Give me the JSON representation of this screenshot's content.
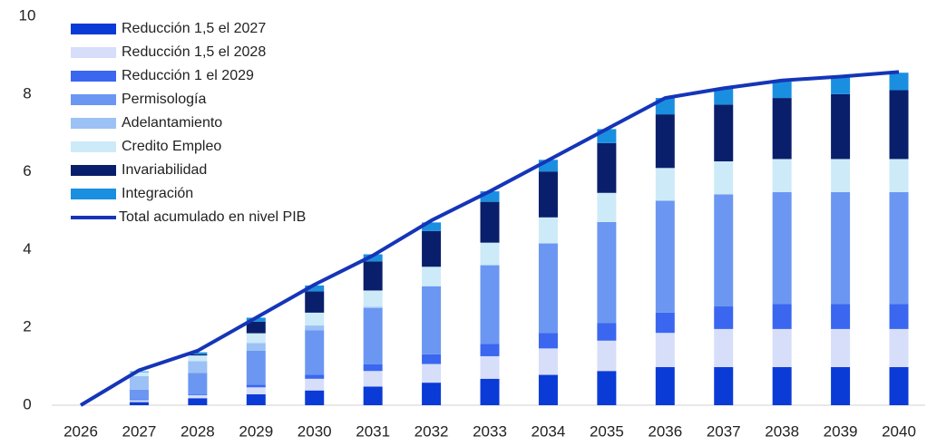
{
  "chart_data": {
    "type": "stacked_bar_line",
    "categories": [
      "2026",
      "2027",
      "2028",
      "2029",
      "2030",
      "2031",
      "2032",
      "2033",
      "2034",
      "2035",
      "2036",
      "2037",
      "2038",
      "2039",
      "2040"
    ],
    "ylim": [
      0,
      10
    ],
    "yticks": [
      0,
      2,
      4,
      6,
      8,
      10
    ],
    "series": [
      {
        "name": "Reducción 1,5 el 2027",
        "color": "#0b3bd6",
        "values": [
          0,
          0.08,
          0.18,
          0.28,
          0.38,
          0.48,
          0.58,
          0.68,
          0.78,
          0.88,
          0.98,
          0.98,
          0.98,
          0.98,
          0.98
        ]
      },
      {
        "name": "Reducción 1,5 el 2028",
        "color": "#d6defa",
        "values": [
          0,
          0.05,
          0.08,
          0.18,
          0.3,
          0.4,
          0.48,
          0.58,
          0.68,
          0.78,
          0.88,
          0.98,
          0.98,
          0.98,
          0.98
        ]
      },
      {
        "name": "Reducción 1 el 2029",
        "color": "#3a66f0",
        "values": [
          0,
          0.02,
          0.02,
          0.07,
          0.1,
          0.17,
          0.25,
          0.32,
          0.4,
          0.45,
          0.52,
          0.58,
          0.64,
          0.64,
          0.64
        ]
      },
      {
        "name": "Permisología",
        "color": "#6b97f2",
        "values": [
          0,
          0.25,
          0.55,
          0.87,
          1.15,
          1.45,
          1.75,
          2.02,
          2.3,
          2.6,
          2.88,
          2.88,
          2.88,
          2.88,
          2.88
        ]
      },
      {
        "name": "Adelantamiento",
        "color": "#9cc1f5",
        "values": [
          0,
          0.35,
          0.3,
          0.2,
          0.12,
          0.03,
          0,
          0,
          0,
          0,
          0,
          0,
          0,
          0,
          0
        ]
      },
      {
        "name": "Credito Empleo",
        "color": "#cdeaf9",
        "values": [
          0,
          0.1,
          0.15,
          0.25,
          0.33,
          0.42,
          0.5,
          0.58,
          0.67,
          0.75,
          0.84,
          0.85,
          0.85,
          0.85,
          0.85
        ]
      },
      {
        "name": "Invariabilidad",
        "color": "#0a1f6b",
        "values": [
          0,
          0,
          0.03,
          0.3,
          0.55,
          0.75,
          0.92,
          1.05,
          1.18,
          1.28,
          1.38,
          1.46,
          1.57,
          1.67,
          1.77
        ]
      },
      {
        "name": "Integración",
        "color": "#1a8fe0",
        "values": [
          0,
          0.02,
          0.05,
          0.1,
          0.15,
          0.18,
          0.22,
          0.27,
          0.3,
          0.36,
          0.42,
          0.42,
          0.42,
          0.45,
          0.45
        ]
      }
    ],
    "line": {
      "name": "Total acumulado  en nivel PIB",
      "color": "#1535b8",
      "values": [
        0,
        0.9,
        1.4,
        2.25,
        3.1,
        3.85,
        4.75,
        5.5,
        6.3,
        7.1,
        7.9,
        8.15,
        8.35,
        8.45,
        8.57
      ]
    }
  }
}
